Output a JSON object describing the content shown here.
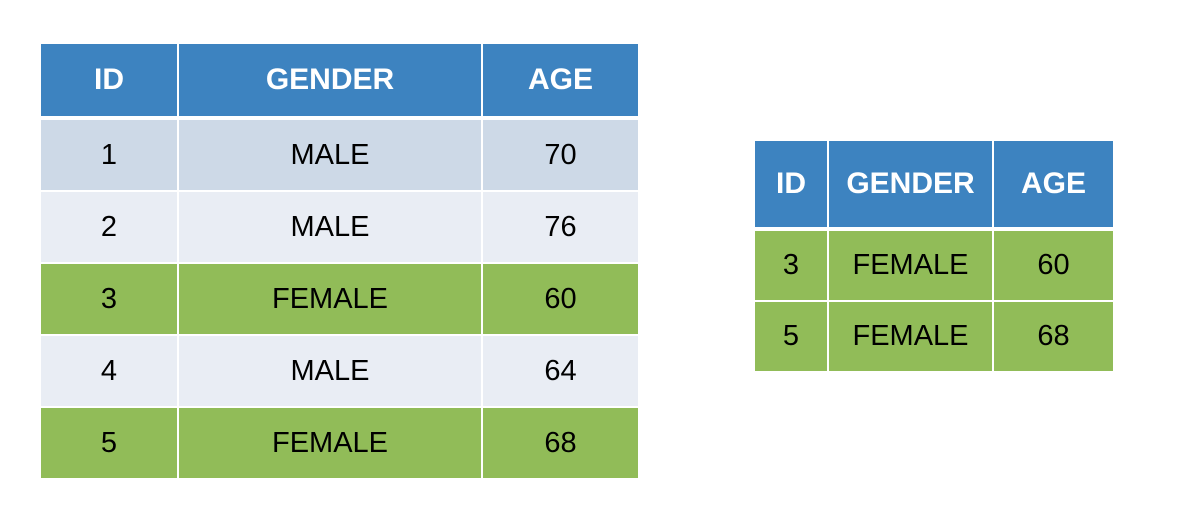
{
  "colors": {
    "header_bg": "#3d83c0",
    "header_text": "#ffffff",
    "row_odd": "#cdd9e7",
    "row_even": "#e9edf4",
    "highlight": "#91bc58"
  },
  "full_table": {
    "headers": [
      "ID",
      "GENDER",
      "AGE"
    ],
    "rows": [
      {
        "id": "1",
        "gender": "MALE",
        "age": "70",
        "highlight": false
      },
      {
        "id": "2",
        "gender": "MALE",
        "age": "76",
        "highlight": false
      },
      {
        "id": "3",
        "gender": "FEMALE",
        "age": "60",
        "highlight": true
      },
      {
        "id": "4",
        "gender": "MALE",
        "age": "64",
        "highlight": false
      },
      {
        "id": "5",
        "gender": "FEMALE",
        "age": "68",
        "highlight": true
      }
    ]
  },
  "filtered_table": {
    "headers": [
      "ID",
      "GENDER",
      "AGE"
    ],
    "rows": [
      {
        "id": "3",
        "gender": "FEMALE",
        "age": "60",
        "highlight": true
      },
      {
        "id": "5",
        "gender": "FEMALE",
        "age": "68",
        "highlight": true
      }
    ]
  }
}
